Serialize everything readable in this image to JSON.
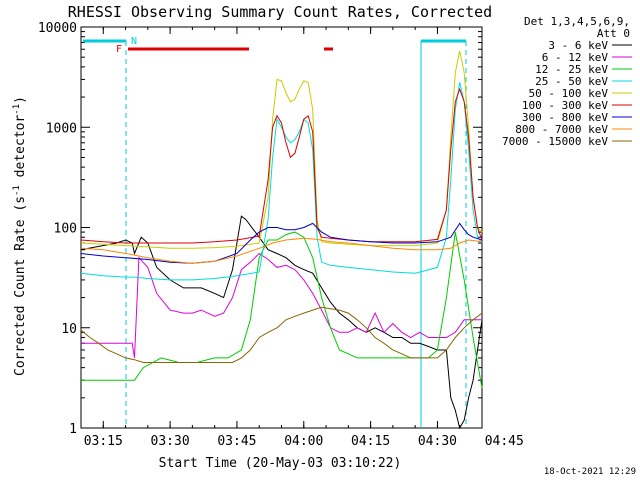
{
  "chart_data": {
    "type": "line",
    "title": "RHESSI Observing Summary Count Rates, Corrected",
    "xlabel": "Start Time (20-May-03 03:10:22)",
    "ylabel_main": "Corrected Count Rate (s",
    "ylabel_sup1": "-1",
    "ylabel_mid": " detector",
    "ylabel_sup2": "-1",
    "ylabel_end": ")",
    "yscale": "log",
    "ylim": [
      1,
      10000
    ],
    "xlim_minutes": [
      0,
      90
    ],
    "x_ticks": [
      {
        "label": "03:15",
        "t": 5
      },
      {
        "label": "03:30",
        "t": 20
      },
      {
        "label": "03:45",
        "t": 35
      },
      {
        "label": "04:00",
        "t": 50
      },
      {
        "label": "04:15",
        "t": 65
      },
      {
        "label": "04:30",
        "t": 80
      },
      {
        "label": "04:45",
        "t": 95
      }
    ],
    "y_ticks": [
      {
        "label": "1",
        "v": 1
      },
      {
        "label": "10",
        "v": 10
      },
      {
        "label": "100",
        "v": 100
      },
      {
        "label": "1000",
        "v": 1000
      },
      {
        "label": "10000",
        "v": 10000
      }
    ],
    "legend_header": [
      "Det 1,3,4,5,6,9,",
      "Att 0"
    ],
    "legend_position": "right",
    "timestamp": "18-Oct-2021 12:29",
    "flag_labels": {
      "flare": "F",
      "night": "N"
    },
    "series": [
      {
        "name": "3 - 6 keV",
        "color": "#000000",
        "t": [
          0,
          8,
          10,
          11.5,
          12,
          13.5,
          15,
          17,
          20,
          23,
          25,
          27,
          30,
          32,
          34,
          36,
          37,
          40,
          42,
          44,
          46,
          48,
          50,
          52,
          54,
          56,
          58,
          60,
          62,
          64,
          66,
          68,
          70,
          72,
          74,
          76,
          78,
          80,
          82,
          83,
          84,
          85,
          86,
          87,
          88,
          89,
          90
        ],
        "v": [
          60,
          70,
          75,
          70,
          55,
          80,
          70,
          40,
          30,
          25,
          25,
          25,
          22,
          20,
          38,
          130,
          120,
          80,
          60,
          55,
          50,
          42,
          38,
          35,
          25,
          18,
          14,
          12,
          10,
          9,
          10,
          9,
          8,
          8,
          7,
          7,
          6.5,
          6,
          6,
          2,
          1.5,
          1,
          1.2,
          2,
          3,
          6,
          12
        ]
      },
      {
        "name": "6 - 12 keV",
        "color": "#dd00dd",
        "t": [
          0,
          8,
          10,
          11.5,
          12,
          13,
          15,
          17,
          20,
          23,
          25,
          27,
          30,
          32,
          34,
          36,
          38,
          40,
          42,
          44,
          46,
          48,
          50,
          52,
          54,
          56,
          58,
          60,
          62,
          64,
          66,
          68,
          70,
          72,
          74,
          76,
          78,
          80,
          82,
          84,
          86,
          88,
          90
        ],
        "v": [
          7,
          7,
          7,
          7,
          5,
          50,
          40,
          22,
          15,
          14,
          14,
          15,
          13,
          14,
          20,
          38,
          45,
          55,
          48,
          40,
          42,
          38,
          30,
          22,
          15,
          10,
          9,
          9,
          10,
          9,
          14,
          9,
          11,
          9,
          8,
          9,
          8,
          8,
          8,
          9,
          12,
          12,
          12
        ]
      },
      {
        "name": "12 - 25 keV",
        "color": "#00cc00",
        "t": [
          0,
          10,
          11.5,
          12,
          14,
          18,
          22,
          26,
          30,
          33,
          36,
          38,
          40,
          42,
          44,
          46,
          48,
          50,
          52,
          54,
          56,
          58,
          60,
          62,
          64,
          66,
          68,
          70,
          72,
          74,
          76,
          78,
          80,
          82,
          84,
          86,
          88,
          90
        ],
        "v": [
          3,
          3,
          3,
          3,
          4,
          5,
          4.5,
          4.5,
          5,
          5,
          6,
          12,
          50,
          75,
          75,
          85,
          90,
          80,
          50,
          20,
          10,
          6,
          5.5,
          5,
          5,
          5,
          5,
          5,
          5,
          5,
          5,
          5,
          6,
          20,
          90,
          30,
          8,
          2.5
        ]
      },
      {
        "name": "25 - 50 keV",
        "color": "#00dddd",
        "t": [
          0,
          5,
          10,
          12,
          15,
          20,
          25,
          30,
          35,
          40,
          42,
          43,
          44,
          45,
          46,
          47,
          48,
          49,
          50,
          51,
          52,
          53,
          54,
          56,
          60,
          65,
          70,
          75,
          80,
          82,
          83,
          84,
          85,
          86,
          87,
          88,
          89,
          90
        ],
        "v": [
          35,
          33,
          32,
          32,
          31,
          30,
          30,
          31,
          33,
          36,
          120,
          500,
          1200,
          1000,
          800,
          700,
          750,
          900,
          1200,
          1100,
          600,
          80,
          45,
          42,
          40,
          38,
          36,
          35,
          40,
          80,
          300,
          1500,
          2800,
          1800,
          600,
          150,
          80,
          70
        ]
      },
      {
        "name": "50 - 100 keV",
        "color": "#cccc00",
        "t": [
          0,
          5,
          10,
          15,
          20,
          25,
          30,
          35,
          40,
          42,
          43,
          44,
          45,
          46,
          47,
          48,
          49,
          50,
          51,
          52,
          53,
          54,
          56,
          60,
          65,
          70,
          75,
          80,
          82,
          83,
          84,
          85,
          86,
          87,
          88,
          89,
          90
        ],
        "v": [
          70,
          68,
          66,
          64,
          62,
          62,
          63,
          65,
          70,
          200,
          1200,
          3000,
          2900,
          2200,
          1800,
          1900,
          2400,
          2900,
          2800,
          1500,
          120,
          72,
          70,
          68,
          66,
          66,
          66,
          70,
          150,
          800,
          3500,
          5800,
          3500,
          1000,
          200,
          100,
          90
        ]
      },
      {
        "name": "100 - 300 keV",
        "color": "#dd0000",
        "t": [
          0,
          5,
          10,
          15,
          20,
          25,
          30,
          35,
          40,
          42,
          43,
          44,
          45,
          46,
          47,
          48,
          49,
          50,
          51,
          52,
          53,
          54,
          56,
          60,
          65,
          70,
          75,
          80,
          82,
          83,
          84,
          85,
          86,
          87,
          88,
          89,
          90
        ],
        "v": [
          75,
          72,
          70,
          70,
          70,
          70,
          72,
          75,
          82,
          300,
          1000,
          1300,
          1100,
          700,
          500,
          550,
          800,
          1200,
          1300,
          900,
          100,
          80,
          78,
          75,
          72,
          72,
          72,
          76,
          150,
          600,
          1800,
          2400,
          1800,
          800,
          200,
          100,
          75
        ]
      },
      {
        "name": "300 - 800 keV",
        "color": "#0000cc",
        "t": [
          0,
          5,
          10,
          15,
          20,
          25,
          30,
          35,
          38,
          40,
          42,
          44,
          46,
          48,
          50,
          52,
          54,
          56,
          60,
          65,
          70,
          75,
          80,
          83,
          85,
          86,
          87,
          88,
          90
        ],
        "v": [
          55,
          52,
          50,
          48,
          45,
          44,
          46,
          55,
          75,
          90,
          100,
          100,
          95,
          95,
          100,
          110,
          90,
          80,
          75,
          72,
          70,
          70,
          72,
          80,
          110,
          95,
          85,
          80,
          75
        ]
      },
      {
        "name": "800 - 7000 keV",
        "color": "#ff8800",
        "t": [
          0,
          5,
          10,
          15,
          20,
          25,
          30,
          35,
          40,
          43,
          46,
          50,
          53,
          56,
          60,
          65,
          70,
          75,
          80,
          83,
          85,
          87,
          90
        ],
        "v": [
          62,
          60,
          55,
          50,
          46,
          44,
          46,
          52,
          62,
          70,
          75,
          78,
          76,
          72,
          70,
          66,
          62,
          60,
          60,
          62,
          70,
          75,
          72
        ]
      },
      {
        "name": "7000 - 15000 keV",
        "color": "#886600",
        "t": [
          0,
          2,
          4,
          6,
          8,
          10,
          12,
          14,
          18,
          22,
          26,
          30,
          34,
          36,
          38,
          40,
          42,
          44,
          46,
          48,
          50,
          52,
          54,
          56,
          58,
          60,
          62,
          64,
          66,
          68,
          70,
          72,
          74,
          76,
          78,
          80,
          82,
          84,
          86,
          88,
          90
        ],
        "v": [
          9.5,
          8,
          7,
          6,
          5.5,
          5,
          4.8,
          4.5,
          4.5,
          4.5,
          4.5,
          4.5,
          4.5,
          5,
          6,
          8,
          9,
          10,
          12,
          13,
          14,
          15,
          16,
          15.5,
          15,
          14,
          12,
          10,
          8,
          7,
          6,
          5.5,
          5,
          5,
          5,
          5,
          6,
          8,
          10,
          12,
          14
        ]
      }
    ]
  }
}
